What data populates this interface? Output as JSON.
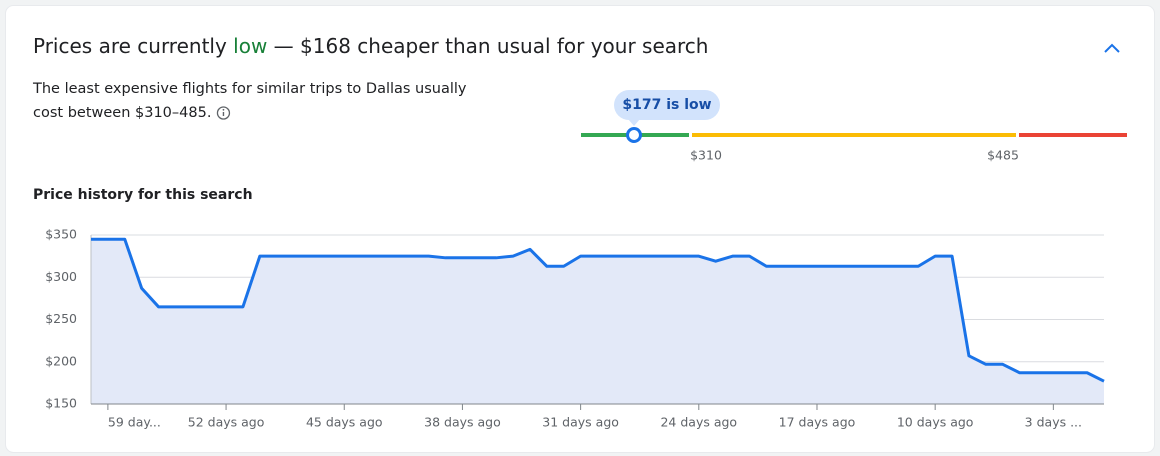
{
  "header": {
    "title_parts": [
      "Prices are currently ",
      "low",
      " — $168 cheaper than usual for your search"
    ],
    "description_lines": [
      "The least expensive flights for similar trips to Dallas usually",
      "cost between $310–485."
    ]
  },
  "price_range": {
    "badge": "$177 is low",
    "low_label": "$310",
    "high_label": "$485"
  },
  "chart_data": {
    "type": "line",
    "title": "Price history for this search",
    "x": [
      60,
      59,
      58,
      57,
      56,
      55,
      54,
      53,
      52,
      51,
      50,
      49,
      48,
      47,
      46,
      45,
      44,
      43,
      42,
      41,
      40,
      39,
      38,
      37,
      36,
      35,
      34,
      33,
      32,
      31,
      30,
      29,
      28,
      27,
      26,
      25,
      24,
      23,
      22,
      21,
      20,
      19,
      18,
      17,
      16,
      15,
      14,
      13,
      12,
      11,
      10,
      9,
      8,
      7,
      6,
      5,
      4,
      3,
      2,
      1,
      0
    ],
    "values": [
      345,
      345,
      345,
      287,
      265,
      265,
      265,
      265,
      265,
      265,
      325,
      325,
      325,
      325,
      325,
      325,
      325,
      325,
      325,
      325,
      325,
      323,
      323,
      323,
      323,
      325,
      333,
      313,
      313,
      325,
      325,
      325,
      325,
      325,
      325,
      325,
      325,
      319,
      325,
      325,
      313,
      313,
      313,
      313,
      313,
      313,
      313,
      313,
      313,
      313,
      325,
      325,
      207,
      197,
      197,
      187,
      187,
      187,
      187,
      187,
      177
    ],
    "color": "#1a73e8",
    "fill_color": "#e3e9f8",
    "xlim": [
      60,
      0
    ],
    "xticks": [
      {
        "value": 59,
        "label": "59 day..."
      },
      {
        "value": 52,
        "label": "52 days ago"
      },
      {
        "value": 45,
        "label": "45 days ago"
      },
      {
        "value": 38,
        "label": "38 days ago"
      },
      {
        "value": 31,
        "label": "31 days ago"
      },
      {
        "value": 24,
        "label": "24 days ago"
      },
      {
        "value": 17,
        "label": "17 days ago"
      },
      {
        "value": 10,
        "label": "10 days ago"
      },
      {
        "value": 3,
        "label": "3 days ..."
      }
    ],
    "ylim": [
      150,
      350
    ],
    "yticks": [
      {
        "value": 150,
        "label": "$150"
      },
      {
        "value": 200,
        "label": "$200"
      },
      {
        "value": 250,
        "label": "$250"
      },
      {
        "value": 300,
        "label": "$300"
      },
      {
        "value": 350,
        "label": "$350"
      }
    ],
    "grid": true
  }
}
